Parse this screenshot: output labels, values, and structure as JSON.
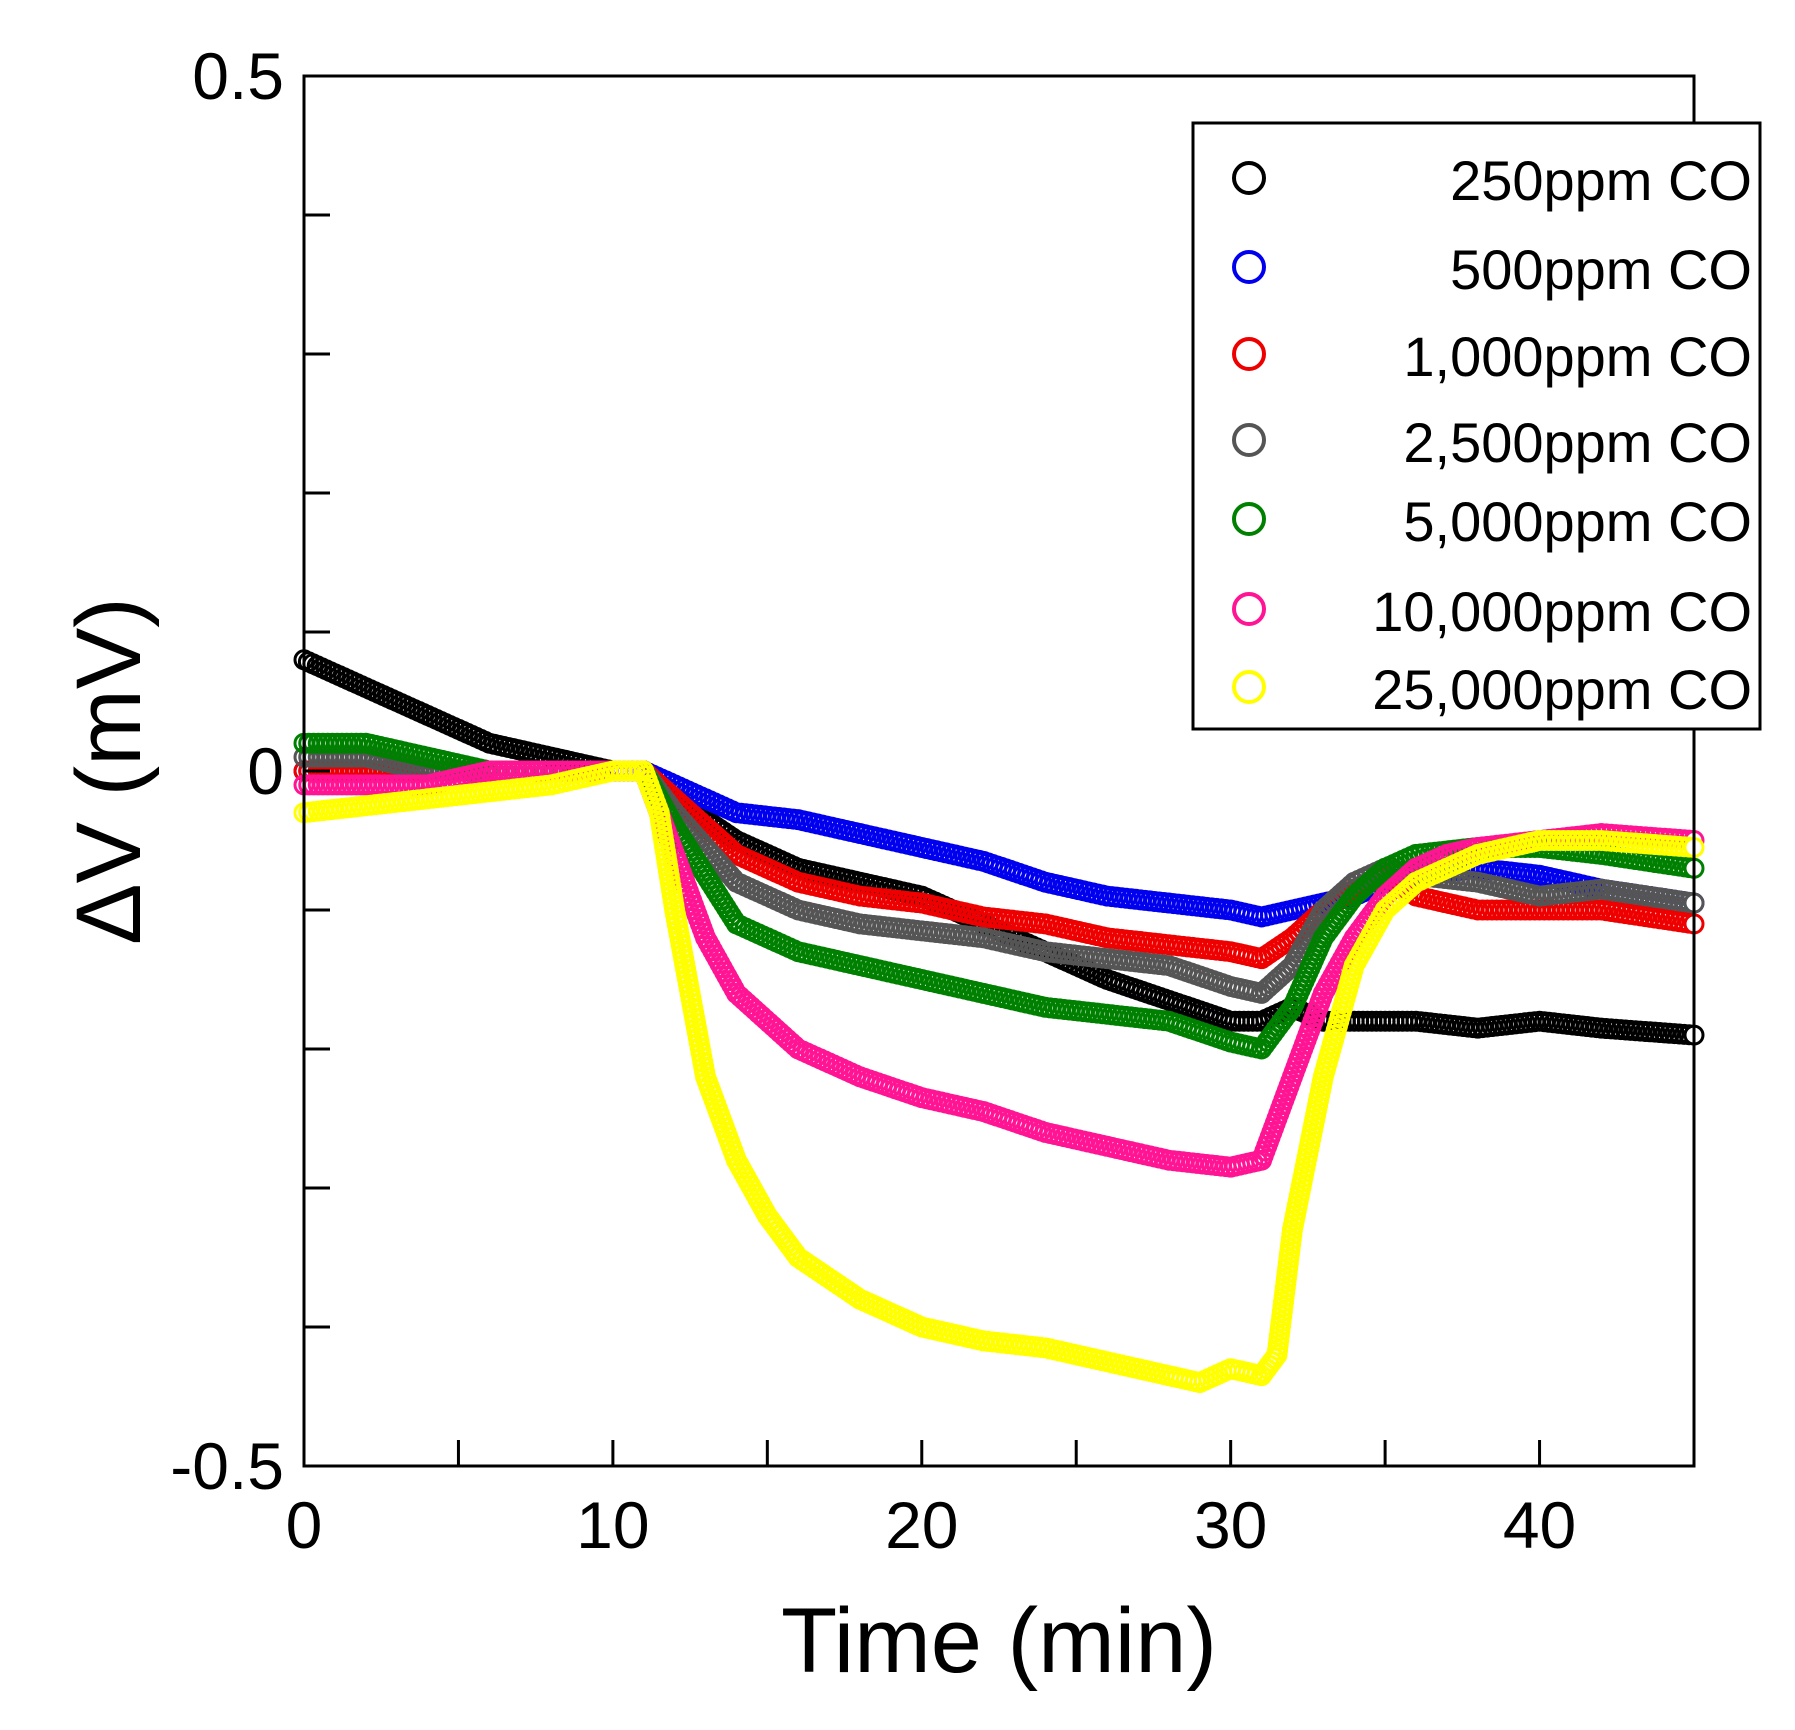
{
  "chart_data": {
    "type": "scatter",
    "title": "",
    "xlabel": "Time (min)",
    "ylabel": "ΔV (mV)",
    "xlim": [
      0,
      45
    ],
    "ylim": [
      -0.5,
      0.5
    ],
    "x_ticks": [
      0,
      10,
      20,
      30,
      40
    ],
    "x_minor_ticks": [
      5,
      15,
      25,
      35,
      45
    ],
    "y_ticks": [
      {
        "value": 0.5,
        "label": "0.5"
      },
      {
        "value": 0,
        "label": "0"
      },
      {
        "value": -0.5,
        "label": "-0.5"
      }
    ],
    "y_minor_ticks": [
      0.4,
      0.3,
      0.2,
      0.1,
      -0.1,
      -0.2,
      -0.3,
      -0.4
    ],
    "grid": false,
    "marker": "open-circle",
    "legend": {
      "position": "top-right",
      "entries": [
        "250ppm CO",
        "500ppm CO",
        "1,000ppm CO",
        "2,500ppm CO",
        "5,000ppm CO",
        "10,000ppm CO",
        "25,000ppm CO"
      ]
    },
    "series": [
      {
        "name": "250ppm CO",
        "color": "#000000",
        "x": [
          0,
          2,
          4,
          6,
          8,
          10,
          11,
          12,
          14,
          16,
          18,
          20,
          22,
          24,
          26,
          28,
          30,
          31,
          32,
          33,
          34,
          35,
          36,
          38,
          40,
          42,
          45
        ],
        "y": [
          0.08,
          0.06,
          0.04,
          0.02,
          0.01,
          0.0,
          0.0,
          -0.02,
          -0.05,
          -0.07,
          -0.08,
          -0.09,
          -0.11,
          -0.13,
          -0.15,
          -0.165,
          -0.18,
          -0.18,
          -0.17,
          -0.18,
          -0.18,
          -0.18,
          -0.18,
          -0.185,
          -0.18,
          -0.185,
          -0.19
        ]
      },
      {
        "name": "500ppm CO",
        "color": "#0000ee",
        "x": [
          0,
          2,
          4,
          6,
          8,
          10,
          11,
          12,
          14,
          16,
          18,
          20,
          22,
          24,
          26,
          28,
          30,
          31,
          32,
          33,
          34,
          35,
          36,
          38,
          40,
          42,
          45
        ],
        "y": [
          0.0,
          0.0,
          0.0,
          0.0,
          0.0,
          0.0,
          0.0,
          -0.01,
          -0.03,
          -0.035,
          -0.045,
          -0.055,
          -0.065,
          -0.08,
          -0.09,
          -0.095,
          -0.1,
          -0.105,
          -0.1,
          -0.095,
          -0.09,
          -0.08,
          -0.075,
          -0.07,
          -0.075,
          -0.085,
          -0.095
        ]
      },
      {
        "name": "1,000ppm CO",
        "color": "#ee0000",
        "x": [
          0,
          2,
          4,
          6,
          8,
          10,
          11,
          12,
          14,
          16,
          18,
          20,
          22,
          24,
          26,
          28,
          30,
          31,
          32,
          33,
          34,
          35,
          36,
          38,
          40,
          42,
          45
        ],
        "y": [
          0.0,
          0.0,
          0.0,
          0.0,
          0.0,
          0.0,
          0.0,
          -0.02,
          -0.06,
          -0.08,
          -0.09,
          -0.095,
          -0.105,
          -0.11,
          -0.12,
          -0.125,
          -0.13,
          -0.135,
          -0.12,
          -0.1,
          -0.085,
          -0.075,
          -0.09,
          -0.1,
          -0.1,
          -0.1,
          -0.11
        ]
      },
      {
        "name": "2,500ppm CO",
        "color": "#555555",
        "x": [
          0,
          2,
          4,
          6,
          8,
          10,
          11,
          12,
          14,
          16,
          18,
          20,
          22,
          24,
          26,
          28,
          30,
          31,
          32,
          33,
          34,
          35,
          36,
          38,
          40,
          42,
          45
        ],
        "y": [
          0.01,
          0.01,
          0.0,
          0.0,
          0.0,
          0.0,
          0.0,
          -0.03,
          -0.08,
          -0.1,
          -0.11,
          -0.115,
          -0.12,
          -0.13,
          -0.135,
          -0.14,
          -0.155,
          -0.16,
          -0.14,
          -0.1,
          -0.08,
          -0.07,
          -0.075,
          -0.08,
          -0.09,
          -0.085,
          -0.095
        ]
      },
      {
        "name": "5,000ppm CO",
        "color": "#008000",
        "x": [
          0,
          2,
          4,
          6,
          8,
          10,
          11,
          12,
          14,
          16,
          18,
          20,
          22,
          24,
          26,
          28,
          30,
          31,
          32,
          33,
          34,
          35,
          36,
          38,
          40,
          42,
          45
        ],
        "y": [
          0.02,
          0.02,
          0.01,
          0.0,
          0.0,
          0.0,
          0.0,
          -0.04,
          -0.11,
          -0.13,
          -0.14,
          -0.15,
          -0.16,
          -0.17,
          -0.175,
          -0.18,
          -0.195,
          -0.2,
          -0.17,
          -0.12,
          -0.09,
          -0.07,
          -0.06,
          -0.055,
          -0.055,
          -0.06,
          -0.07
        ]
      },
      {
        "name": "10,000ppm CO",
        "color": "#ff1493",
        "x": [
          0,
          2,
          4,
          6,
          8,
          10,
          11,
          12,
          13,
          14,
          16,
          18,
          20,
          22,
          24,
          26,
          28,
          30,
          31,
          32,
          33,
          34,
          35,
          36,
          37,
          38,
          40,
          42,
          45
        ],
        "y": [
          -0.01,
          -0.01,
          -0.01,
          0.0,
          0.0,
          0.0,
          0.0,
          -0.06,
          -0.12,
          -0.16,
          -0.2,
          -0.22,
          -0.235,
          -0.245,
          -0.26,
          -0.27,
          -0.28,
          -0.285,
          -0.28,
          -0.22,
          -0.16,
          -0.12,
          -0.09,
          -0.07,
          -0.06,
          -0.055,
          -0.05,
          -0.045,
          -0.05
        ]
      },
      {
        "name": "25,000ppm CO",
        "color": "#ffff00",
        "x": [
          0,
          2,
          4,
          6,
          8,
          10,
          11,
          11.5,
          12,
          13,
          14,
          15,
          16,
          18,
          20,
          22,
          24,
          26,
          28,
          29,
          30,
          31,
          31.5,
          32,
          33,
          34,
          35,
          36,
          37,
          38,
          40,
          42,
          45
        ],
        "y": [
          -0.03,
          -0.025,
          -0.02,
          -0.015,
          -0.01,
          0.0,
          0.0,
          -0.03,
          -0.1,
          -0.22,
          -0.28,
          -0.32,
          -0.35,
          -0.38,
          -0.4,
          -0.41,
          -0.415,
          -0.425,
          -0.435,
          -0.44,
          -0.43,
          -0.435,
          -0.42,
          -0.33,
          -0.22,
          -0.14,
          -0.1,
          -0.08,
          -0.07,
          -0.06,
          -0.05,
          -0.05,
          -0.055
        ]
      }
    ]
  }
}
